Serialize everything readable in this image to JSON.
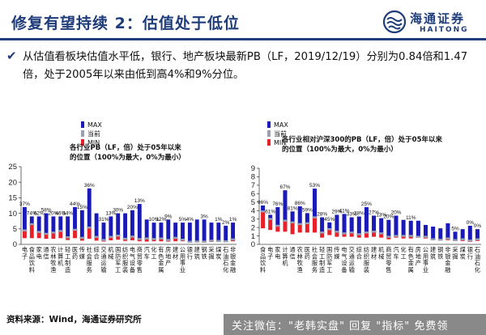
{
  "header": {
    "title": "修复有望持续 2：估值处于低位",
    "logo_cn": "海通证券",
    "logo_en": "HAITONG"
  },
  "bullet": {
    "text": "从估值看板块估值水平低，银行、地产板块最新PB（LF，2019/12/19）分别为0.84倍和1.47倍，处于2005年以来由低到高4%和9%分位。"
  },
  "colors": {
    "max": "#1a1ab8",
    "current": "#9aa0b4",
    "min": "#e8202a",
    "brand": "#1f3d7a"
  },
  "legend": {
    "max": "MAX",
    "current": "当前",
    "min": "MIN"
  },
  "chart_data": [
    {
      "type": "bar",
      "title": "各行业PB（LF，倍）处于05年以来的位置（100%为最大，0%为最小）",
      "ylim": [
        0,
        25
      ],
      "yticks": [
        0,
        5,
        10,
        15,
        20,
        25
      ],
      "categories": [
        "电子",
        "食品饮料",
        "家电",
        "通信",
        "农林牧渔",
        "计算机",
        "轻工制造",
        "医药",
        "传媒",
        "社会服务",
        "综合",
        "交通运输",
        "机械",
        "国防军工",
        "纺织服装",
        "电气设备",
        "商贸零售",
        "汽车",
        "化工",
        "有色金属",
        "房地产",
        "建材",
        "公用事业",
        "银行",
        "建筑",
        "钢铁",
        "采掘",
        "煤炭",
        "石油石化",
        "非银金融"
      ],
      "series": [
        {
          "name": "MAX",
          "values": [
            12,
            9,
            9,
            10,
            9,
            9,
            9,
            12,
            11,
            18,
            10,
            7,
            9,
            10,
            10,
            11,
            13,
            8,
            7,
            7,
            8,
            7,
            7,
            7,
            8,
            8,
            7,
            7,
            6,
            7
          ]
        },
        {
          "name": "当前",
          "values": [
            4.5,
            6.5,
            4,
            3.4,
            3.8,
            4.3,
            2.3,
            4.7,
            2.1,
            5.4,
            2.4,
            1.4,
            2.4,
            2.8,
            1.8,
            2.5,
            1.7,
            1.9,
            1.7,
            1.9,
            1.4,
            2.1,
            1.5,
            0.84,
            0.9,
            0.9,
            1.2,
            1.1,
            1,
            1.6
          ]
        },
        {
          "name": "MIN",
          "values": [
            2,
            2,
            2,
            1.8,
            1.8,
            2,
            1.4,
            2,
            1.2,
            1.8,
            1.2,
            0.9,
            1.3,
            1.5,
            1.1,
            1.3,
            1,
            0.9,
            1,
            1,
            0.9,
            1,
            1,
            0.6,
            0.8,
            0.6,
            0.8,
            0.8,
            0.8,
            1
          ]
        }
      ],
      "labels": [
        "37%",
        "74%",
        "62%",
        "58%",
        "20%",
        "46%",
        "34%",
        "44%",
        "15%",
        "36%",
        "",
        "31%",
        "13%",
        "30%",
        "",
        "20%",
        "13%",
        "",
        "10%",
        "12%",
        "9%",
        "",
        "5%",
        "4%",
        "",
        "3%",
        "",
        "1%",
        "2%",
        "1%"
      ]
    },
    {
      "type": "bar",
      "title": "各行业相对沪深300的PB（LF，倍）处于05年以来的位置（100%为最大，0%为最小）",
      "ylim": [
        0,
        9
      ],
      "yticks": [
        0,
        1,
        2,
        3,
        4,
        5,
        6,
        7,
        8,
        9
      ],
      "categories": [
        "食品饮料",
        "电子",
        "家电",
        "计算机",
        "通信",
        "农林牧渔",
        "医药",
        "社会服务",
        "轻工制造",
        "国防军工",
        "传媒",
        "电气设备",
        "交通运输",
        "综合",
        "纺织服装",
        "建材",
        "机械",
        "商贸零售",
        "汽车",
        "化工",
        "有色金属",
        "房地产",
        "公用事业",
        "建筑",
        "钢铁",
        "非银金融",
        "采掘",
        "煤炭",
        "银行",
        "石油石化"
      ],
      "series": [
        {
          "name": "MAX",
          "values": [
            4.6,
            3.5,
            4.4,
            6.4,
            3.9,
            4.5,
            3.7,
            6.6,
            3.2,
            2.6,
            3.5,
            3.6,
            3.2,
            3.3,
            4.4,
            3.4,
            3.1,
            2.9,
            3.4,
            2.9,
            2.8,
            2.8,
            2.3,
            2.1,
            1.9,
            2.5,
            1.5,
            1.8,
            2.2,
            1.8
          ]
        },
        {
          "name": "当前",
          "values": [
            3.9,
            3,
            2.2,
            2.8,
            2.6,
            2.4,
            2.5,
            3.2,
            1.4,
            1.8,
            1.5,
            1.3,
            1.4,
            1.2,
            1.4,
            1.5,
            1.3,
            0.9,
            1,
            1,
            1,
            0.9,
            0.9,
            0.6,
            0.55,
            0.7,
            0.5,
            0.6,
            0.45,
            0.6
          ]
        },
        {
          "name": "MIN",
          "values": [
            1.9,
            1.7,
            1.5,
            1.5,
            1.2,
            1.4,
            1.4,
            1.4,
            0.8,
            1.1,
            0.9,
            0.9,
            0.9,
            0.8,
            0.8,
            0.9,
            0.8,
            0.6,
            0.8,
            0.7,
            0.7,
            0.8,
            0.7,
            0.5,
            0.5,
            0.5,
            0.4,
            0.4,
            0.3,
            0.4
          ]
        }
      ],
      "labels": [
        "96%",
        "61%",
        "76%",
        "67%",
        "81%",
        "86%",
        "59%",
        "53%",
        "28%",
        "45%",
        "29%",
        "41%",
        "33%",
        "28%",
        "25%",
        "27%",
        "13%",
        "20%",
        "20%",
        "",
        "11%",
        "",
        "",
        "",
        "",
        "",
        "5%",
        "",
        "0%",
        "0%"
      ]
    }
  ],
  "footer": {
    "source": "资料来源：Wind，海通证券研究所"
  },
  "watermark": {
    "text": "关注微信：\"老韩实盘\" 回复 \"指标\" 免费领"
  }
}
